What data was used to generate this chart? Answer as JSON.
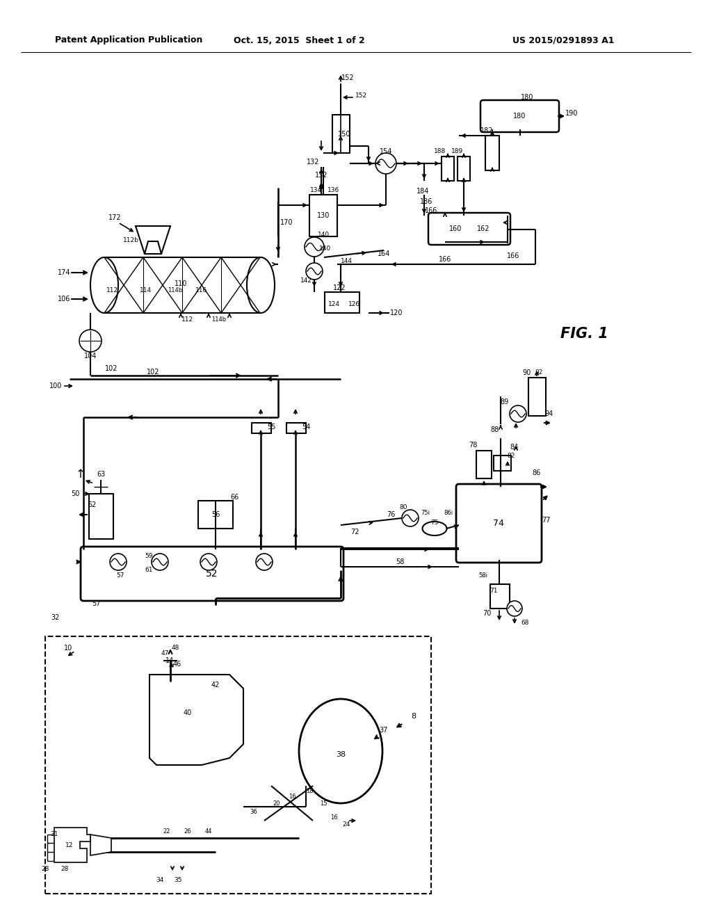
{
  "title_left": "Patent Application Publication",
  "title_center": "Oct. 15, 2015  Sheet 1 of 2",
  "title_right": "US 2015/0291893 A1",
  "fig_label": "FIG. 1",
  "bg_color": "#ffffff",
  "lc": "#000000",
  "tc": "#000000"
}
